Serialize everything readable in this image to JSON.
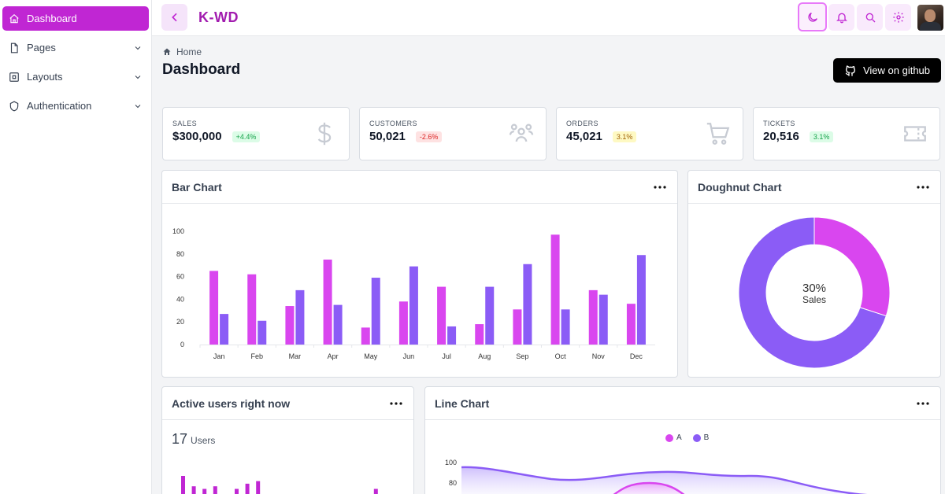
{
  "sidebar": {
    "items": [
      {
        "label": "Dashboard",
        "icon": "home-icon",
        "active": true
      },
      {
        "label": "Pages",
        "icon": "file-icon",
        "active": false
      },
      {
        "label": "Layouts",
        "icon": "layout-icon",
        "active": false
      },
      {
        "label": "Authentication",
        "icon": "shield-icon",
        "active": false
      }
    ]
  },
  "header": {
    "brand": "K-WD",
    "icons": [
      "chevron-left-icon",
      "moon-icon",
      "bell-icon",
      "search-icon",
      "gear-icon",
      "avatar"
    ]
  },
  "page": {
    "breadcrumb": "Home",
    "title": "Dashboard",
    "github_button": "View on github"
  },
  "stats": [
    {
      "label": "SALES",
      "value": "$300,000",
      "badge": "+4.4%",
      "tone": "green",
      "icon": "dollar-icon"
    },
    {
      "label": "CUSTOMERS",
      "value": "50,021",
      "badge": "-2.6%",
      "tone": "red",
      "icon": "users-icon"
    },
    {
      "label": "ORDERS",
      "value": "45,021",
      "badge": "3.1%",
      "tone": "yellow",
      "icon": "cart-icon"
    },
    {
      "label": "TICKETS",
      "value": "20,516",
      "badge": "3.1%",
      "tone": "green",
      "icon": "ticket-icon"
    }
  ],
  "panels": {
    "bar_title": "Bar Chart",
    "doughnut_title": "Doughnut Chart",
    "active_title": "Active users right now",
    "active_count": "17",
    "active_unit": "Users",
    "line_title": "Line Chart"
  },
  "colors": {
    "accent": "#c026d3",
    "magenta": "#d946ef",
    "purple": "#8b5cf6"
  },
  "chart_data": [
    {
      "type": "bar",
      "title": "Bar Chart",
      "categories": [
        "Jan",
        "Feb",
        "Mar",
        "Apr",
        "May",
        "Jun",
        "Jul",
        "Aug",
        "Sep",
        "Oct",
        "Nov",
        "Dec"
      ],
      "series": [
        {
          "values": [
            65,
            62,
            34,
            75,
            15,
            38,
            51,
            18,
            31,
            97,
            48,
            36
          ]
        },
        {
          "values": [
            27,
            21,
            48,
            35,
            59,
            69,
            16,
            51,
            71,
            31,
            44,
            79
          ]
        }
      ],
      "yticks": [
        0,
        20,
        40,
        60,
        80,
        100
      ],
      "ylim": [
        0,
        100
      ],
      "grid": false
    },
    {
      "type": "pie",
      "title": "Doughnut Chart",
      "values": [
        30,
        70
      ],
      "center_value": "30%",
      "center_label": "Sales"
    },
    {
      "type": "bar",
      "title": "Active users right now",
      "values": [
        10,
        6,
        5,
        6,
        0,
        5,
        7,
        8,
        3,
        0,
        2,
        0,
        2,
        0,
        0,
        2,
        0,
        0,
        5
      ]
    },
    {
      "type": "area",
      "title": "Line Chart",
      "series": [
        {
          "name": "A"
        },
        {
          "name": "B"
        }
      ],
      "yticks": [
        80,
        100
      ]
    }
  ]
}
